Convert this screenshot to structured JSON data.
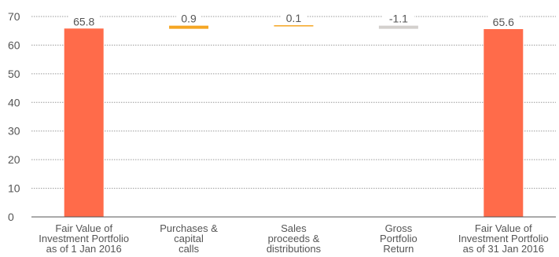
{
  "chart_data": {
    "type": "bar",
    "subtype": "waterfall",
    "categories": [
      [
        "Fair Value of",
        "Investment Portfolio",
        "as of 1 Jan 2016"
      ],
      [
        "Purchases &",
        "capital",
        "calls"
      ],
      [
        "Sales",
        "proceeds &",
        "distributions"
      ],
      [
        "Gross",
        "Portfolio",
        "Return"
      ],
      [
        "Fair Value of",
        "Investment Portfolio",
        "as of 31 Jan 2016"
      ]
    ],
    "values": [
      65.8,
      0.9,
      0.1,
      -1.1,
      65.6
    ],
    "value_labels": [
      "65.8",
      "0.9",
      "0.1",
      "-1.1",
      "65.6"
    ],
    "bar_kinds": [
      "total",
      "increase",
      "increase",
      "decrease",
      "total"
    ],
    "title": "",
    "xlabel": "",
    "ylabel": "",
    "ylim": [
      0,
      70
    ],
    "yticks": [
      0,
      10,
      20,
      30,
      40,
      50,
      60,
      70
    ],
    "grid": true,
    "legend": "none",
    "colors": {
      "total": "#ff6b4a",
      "increase": "#f5a623",
      "decrease": "#d3d0cd",
      "grid": "#9a9a9a",
      "axis": "#555555",
      "text": "#555555"
    }
  }
}
